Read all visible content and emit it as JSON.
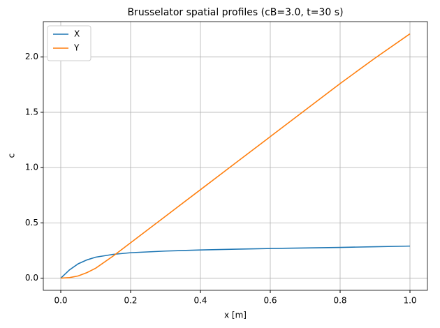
{
  "chart_data": {
    "type": "line",
    "title": "Brusselator spatial profiles (cB=3.0, t=30 s)",
    "x_label": "x [m]",
    "y_label": "c",
    "x": [
      0,
      0.025,
      0.05,
      0.075,
      0.1,
      0.15,
      0.2,
      0.3,
      0.4,
      0.5,
      0.6,
      0.7,
      0.8,
      0.9,
      1.0
    ],
    "series": [
      {
        "name": "X",
        "color": "#1f77b4",
        "values": [
          0,
          0.075,
          0.13,
          0.165,
          0.19,
          0.215,
          0.23,
          0.245,
          0.255,
          0.262,
          0.268,
          0.273,
          0.278,
          0.284,
          0.29
        ]
      },
      {
        "name": "Y",
        "color": "#ff7f0e",
        "values": [
          0,
          0.005,
          0.02,
          0.05,
          0.09,
          0.2,
          0.32,
          0.56,
          0.8,
          1.04,
          1.28,
          1.52,
          1.76,
          1.99,
          2.21
        ]
      }
    ],
    "xlim": [
      -0.05,
      1.05
    ],
    "xticks": [
      {
        "value": 0,
        "label": "0.0"
      },
      {
        "value": 0.2,
        "label": "0.2"
      },
      {
        "value": 0.4,
        "label": "0.4"
      },
      {
        "value": 0.6,
        "label": "0.6"
      },
      {
        "value": 0.8,
        "label": "0.8"
      },
      {
        "value": 1,
        "label": "1.0"
      }
    ],
    "ylim": [
      -0.11,
      2.32
    ],
    "yticks": [
      {
        "value": 0,
        "label": "0.0"
      },
      {
        "value": 0.5,
        "label": "0.5"
      },
      {
        "value": 1,
        "label": "1.0"
      },
      {
        "value": 1.5,
        "label": "1.5"
      },
      {
        "value": 2,
        "label": "2.0"
      }
    ],
    "grid": true,
    "legend": "upper-left"
  }
}
